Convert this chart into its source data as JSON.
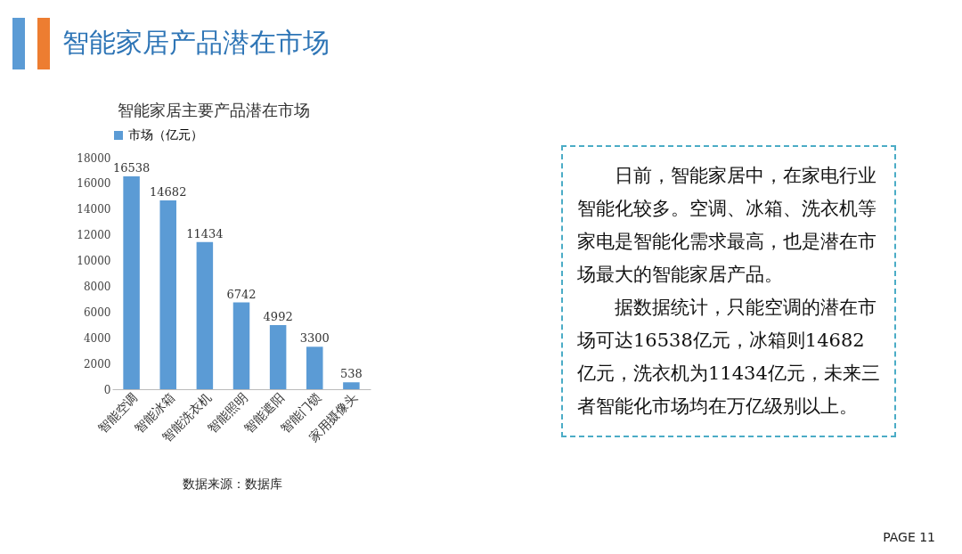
{
  "chart_data": {
    "type": "bar",
    "title": "智能家居产品潜在市场",
    "subtitle": "智能家居主要产品潜在市场",
    "categories": [
      "智能空调",
      "智能冰箱",
      "智能洗衣机",
      "智能照明",
      "智能遮阳",
      "智能门锁",
      "家用摄像头"
    ],
    "series": [
      {
        "name": "市场（亿元）",
        "color": "#5b9bd5",
        "values": [
          16538,
          14682,
          11434,
          6742,
          4992,
          3300,
          538
        ]
      }
    ],
    "ylim": [
      0,
      18000
    ],
    "yticks": [
      0,
      2000,
      4000,
      6000,
      8000,
      10000,
      12000,
      14000,
      16000,
      18000
    ],
    "data_labels": true,
    "legend": "top",
    "grid": false,
    "annotations": [
      "日前，智能家居中，在家电行业智能化较多。空调、冰箱、洗衣机等家电是智能化需求最高，也是潜在市场最大的智能家居产品。",
      "据数据统计，只能空调的潜在市场可达16538亿元，冰箱则14682亿元，洗衣机为11434亿元，未来三者智能化市场均在万亿级别以上。",
      "数据来源：数据库",
      "PAGE 11"
    ]
  }
}
